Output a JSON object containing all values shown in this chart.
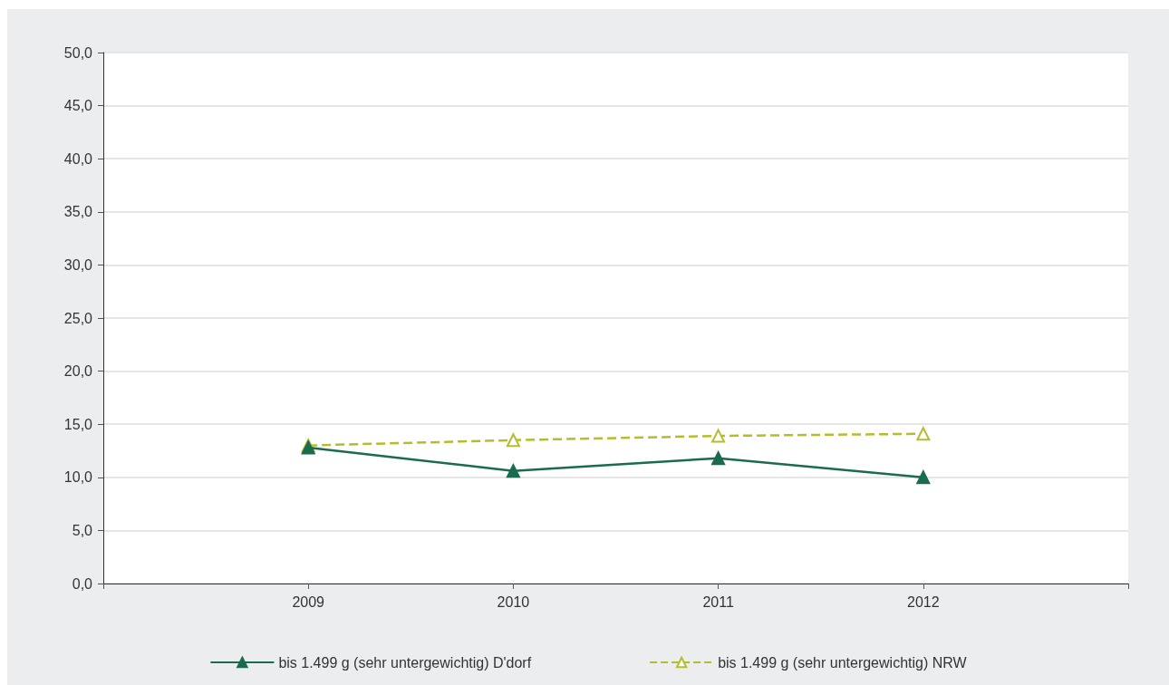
{
  "chart_data": {
    "type": "line",
    "x": [
      2009,
      2010,
      2011,
      2012
    ],
    "series": [
      {
        "name": "bis 1.499 g (sehr untergewichtig) D'dorf",
        "color": "#1b6b4f",
        "values": [
          12.8,
          10.6,
          11.8,
          10.0
        ],
        "line_style": "solid"
      },
      {
        "name": "bis 1.499 g (sehr untergewichtig) NRW",
        "color": "#b5bd2c",
        "values": [
          13.0,
          13.5,
          13.9,
          14.1
        ],
        "line_style": "dashed"
      }
    ],
    "xlim": [
      2008,
      2013
    ],
    "xticks": [
      {
        "value": 2008,
        "label": null
      },
      2009,
      2010,
      2011,
      2012,
      {
        "value": 2013,
        "label": null
      }
    ],
    "ylim": [
      0,
      50
    ],
    "yticks": [
      {
        "value": 0,
        "label": "0,0"
      },
      {
        "value": 5,
        "label": "5,0"
      },
      {
        "value": 10,
        "label": "10,0"
      },
      {
        "value": 15,
        "label": "15,0"
      },
      {
        "value": 20,
        "label": "20,0"
      },
      {
        "value": 25,
        "label": "25,0"
      },
      {
        "value": 30,
        "label": "30,0"
      },
      {
        "value": 35,
        "label": "35,0"
      },
      {
        "value": 40,
        "label": "40,0"
      },
      {
        "value": 45,
        "label": "45,0"
      },
      {
        "value": 50,
        "label": "50,0"
      }
    ],
    "grid": "y",
    "legend": "bottom",
    "marker": "triangle"
  }
}
